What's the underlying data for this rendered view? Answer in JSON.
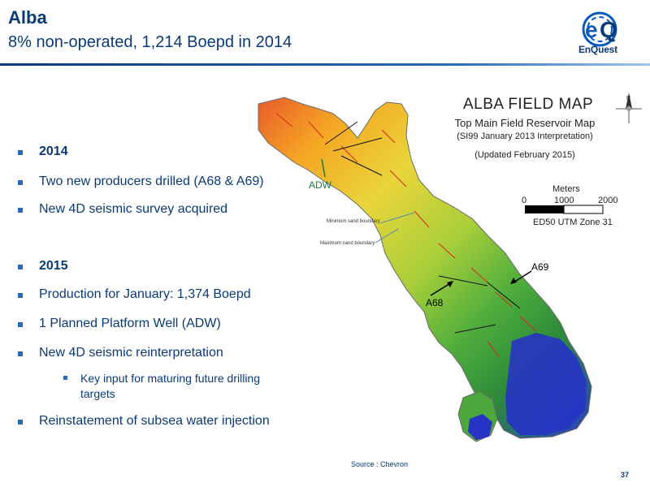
{
  "slide": {
    "title": "Alba",
    "subtitle": "8% non-operated, 1,214 Boepd in 2014",
    "page_number": "37",
    "source": "Source : Chevron"
  },
  "logo": {
    "mark": "eQ",
    "text": "EnQuest"
  },
  "bullets": [
    {
      "text": "2014",
      "bold": true
    },
    {
      "text": "Two new producers drilled (A68 & A69)"
    },
    {
      "text": "New 4D seismic survey acquired"
    },
    {
      "text": "2015",
      "bold": true
    },
    {
      "text": "Production for January: 1,374 Boepd"
    },
    {
      "text": "1 Planned Platform Well (ADW)"
    },
    {
      "text": "New 4D seismic reinterpretation"
    },
    {
      "text": "Reinstatement of subsea water injection"
    }
  ],
  "sub_bullet": {
    "line1": "Key input for maturing future drilling",
    "line2": "targets"
  },
  "map": {
    "title": "ALBA FIELD MAP",
    "subtitle": "Top Main Field Reservoir Map",
    "interpretation": "(SI99 January 2013 Interpretation)",
    "updated": "(Updated February 2015)",
    "scale_label": "Meters",
    "scale_ticks": [
      "0",
      "1000",
      "2000"
    ],
    "projection": "ED50 UTM Zone 31",
    "min_boundary": "Minimum sand boundary",
    "max_boundary": "Maximum sand boundary",
    "wells": {
      "adw": "ADW",
      "a68": "A68",
      "a69": "A69"
    },
    "compass": "N"
  },
  "colors": {
    "accent": "#0a3a78",
    "bullet": "#2a6ab8",
    "logo": "#0a5bc0"
  }
}
